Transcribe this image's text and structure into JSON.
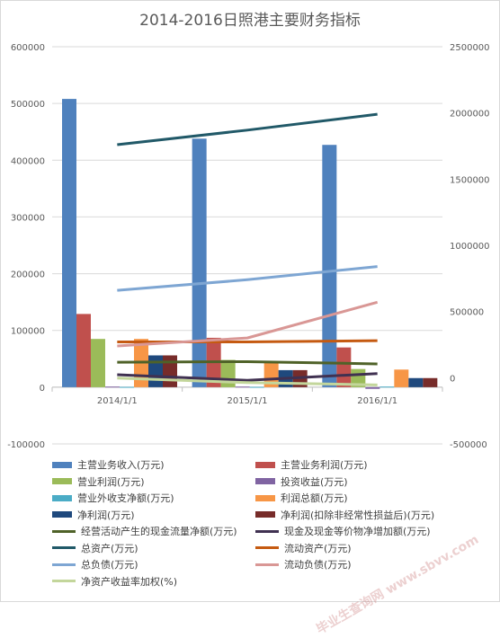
{
  "chart_data": {
    "type": "bar",
    "title": "2014-2016日照港主要财务指标",
    "categories": [
      "2014/1/1",
      "2015/1/1",
      "2016/1/1"
    ],
    "y_left": {
      "ticks": [
        "600000",
        "500000",
        "400000",
        "300000",
        "200000",
        "100000",
        "0",
        "-100000"
      ],
      "ylim": [
        -100000,
        600000
      ]
    },
    "y_right": {
      "ticks": [
        "2500000",
        "2000000",
        "1500000",
        "1000000",
        "500000",
        "0",
        "-500000"
      ],
      "ylim": [
        -500000,
        2500000
      ]
    },
    "grid": true,
    "legend_position": "bottom",
    "bar_series": [
      {
        "name": "主营业务收入(万元)",
        "color": "#4f81bd",
        "values": [
          508000,
          438000,
          427000
        ]
      },
      {
        "name": "主营业务利润(万元)",
        "color": "#c0504d",
        "values": [
          129000,
          87000,
          70000
        ]
      },
      {
        "name": "营业利润(万元)",
        "color": "#9bbb59",
        "values": [
          85000,
          48000,
          32000
        ]
      },
      {
        "name": "投资收益(万元)",
        "color": "#8064a2",
        "values": [
          1000,
          1000,
          -3000
        ]
      },
      {
        "name": "营业外收支净额(万元)",
        "color": "#4bacc6",
        "values": [
          500,
          500,
          1000
        ]
      },
      {
        "name": "利润总额(万元)",
        "color": "#f79646",
        "values": [
          85000,
          43000,
          31000
        ]
      },
      {
        "name": "净利润(万元)",
        "color": "#1f497d",
        "values": [
          56000,
          30000,
          16000
        ]
      },
      {
        "name": "净利润(扣除非经常性损益后)(万元)",
        "color": "#772c2a",
        "values": [
          56000,
          30000,
          16000
        ]
      }
    ],
    "line_series": [
      {
        "name": "经营活动产生的现金流量净额(万元)",
        "color": "#4f6228",
        "axis": "left",
        "values": [
          44000,
          45000,
          41000
        ]
      },
      {
        "name": "现金及现金等价物净增加额(万元)",
        "color": "#403151",
        "axis": "left",
        "values": [
          22000,
          12000,
          24000
        ]
      },
      {
        "name": "总资产(万元)",
        "color": "#215968",
        "axis": "right",
        "values": [
          1760000,
          1870000,
          1990000
        ]
      },
      {
        "name": "流动资产(万元)",
        "color": "#c55a11",
        "axis": "right",
        "values": [
          270000,
          270000,
          280000
        ]
      },
      {
        "name": "总负债(万元)",
        "color": "#7ea6d3",
        "axis": "right",
        "values": [
          660000,
          740000,
          840000
        ]
      },
      {
        "name": "流动负债(万元)",
        "color": "#d99795",
        "axis": "right",
        "values": [
          240000,
          300000,
          570000
        ]
      },
      {
        "name": "净资产收益率加权(%)",
        "color": "#c3d69b",
        "axis": "left",
        "values": [
          16000,
          8000,
          4000
        ]
      }
    ]
  },
  "watermark": "毕业生查询网 www.sbvv.com"
}
